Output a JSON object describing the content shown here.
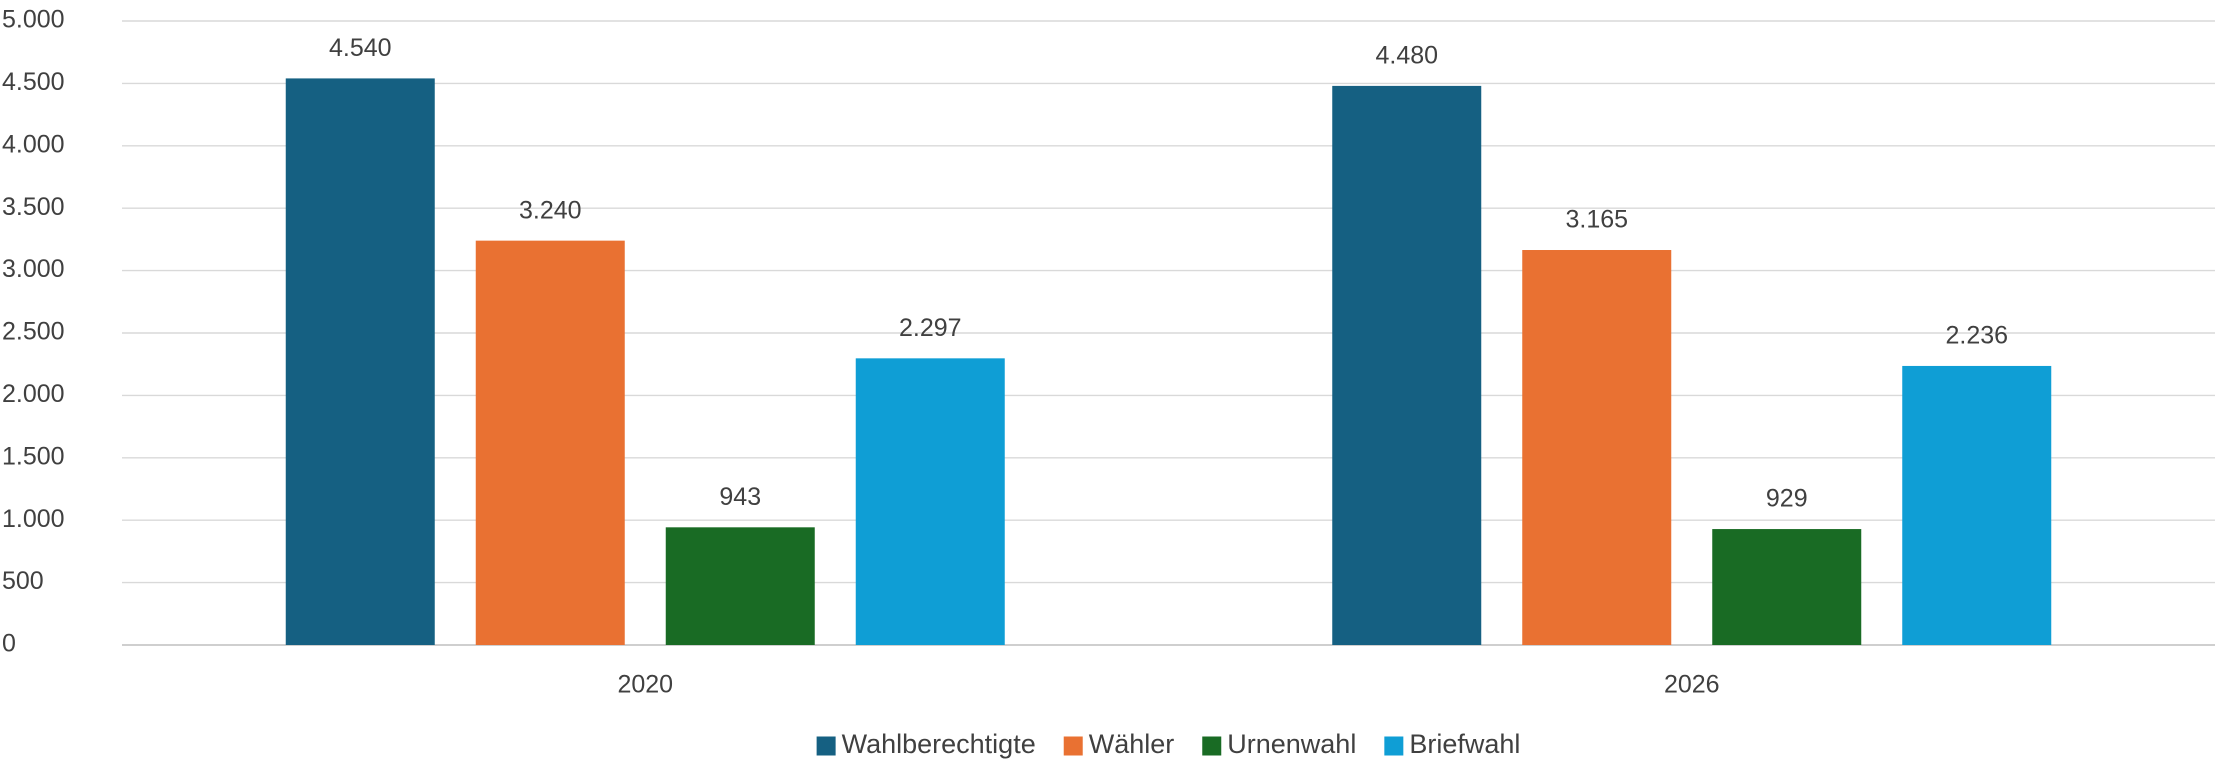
{
  "chart_data": {
    "type": "bar",
    "categories": [
      "2020",
      "2026"
    ],
    "series": [
      {
        "name": "Wahlberechtigte",
        "color": "#156082",
        "values": [
          4540,
          4480
        ],
        "value_labels": [
          "4.540",
          "4.480"
        ]
      },
      {
        "name": "Wähler",
        "color": "#E97132",
        "values": [
          3240,
          3165
        ],
        "value_labels": [
          "3.240",
          "3.165"
        ]
      },
      {
        "name": "Urnenwahl",
        "color": "#196B24",
        "values": [
          943,
          929
        ],
        "value_labels": [
          "943",
          "929"
        ]
      },
      {
        "name": "Briefwahl",
        "color": "#0F9ED5",
        "values": [
          2297,
          2236
        ],
        "value_labels": [
          "2.297",
          "2.236"
        ]
      }
    ],
    "ylim": [
      0,
      5000
    ],
    "yticks": [
      0,
      500,
      {
        "value": 1000,
        "label": "1.000"
      },
      {
        "value": 1500,
        "label": "1.500"
      },
      {
        "value": 2000,
        "label": "2.000"
      },
      {
        "value": 2500,
        "label": "2.500"
      },
      {
        "value": 3000,
        "label": "3.000"
      },
      {
        "value": 3500,
        "label": "3.500"
      },
      {
        "value": 4000,
        "label": "4.000"
      },
      {
        "value": 4500,
        "label": "4.500"
      },
      {
        "value": 5000,
        "label": "5.000"
      }
    ],
    "grid": true,
    "legend": "bottom"
  }
}
